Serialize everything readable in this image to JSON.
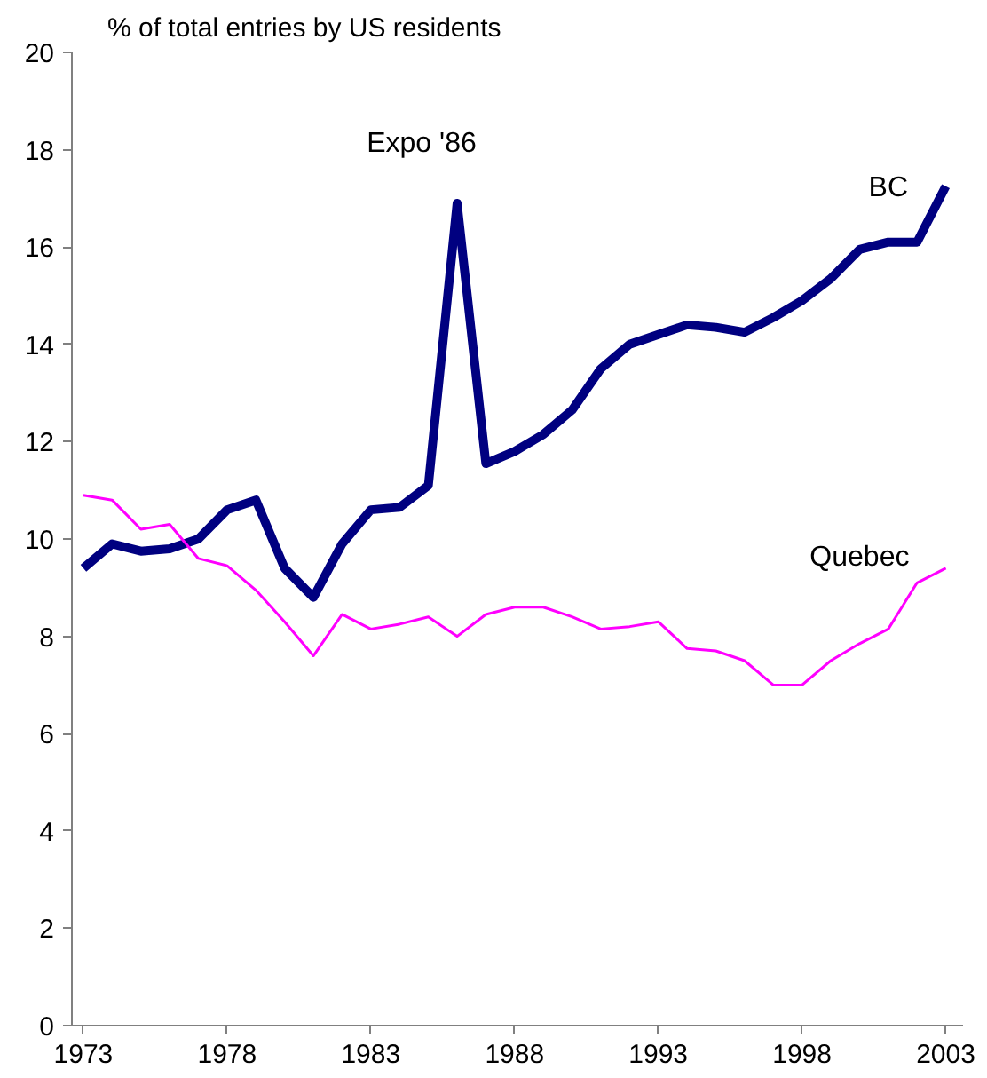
{
  "chart_data": {
    "type": "line",
    "title": "% of total entries by US residents",
    "x": [
      1973,
      1974,
      1975,
      1976,
      1977,
      1978,
      1979,
      1980,
      1981,
      1982,
      1983,
      1984,
      1985,
      1986,
      1987,
      1988,
      1989,
      1990,
      1991,
      1992,
      1993,
      1994,
      1995,
      1996,
      1997,
      1998,
      1999,
      2000,
      2001,
      2002,
      2003
    ],
    "series": [
      {
        "name": "BC",
        "color": "#000080",
        "values": [
          9.4,
          9.9,
          9.75,
          9.8,
          10.0,
          10.6,
          10.8,
          9.4,
          8.8,
          9.9,
          10.6,
          10.65,
          11.1,
          16.9,
          11.55,
          11.8,
          12.15,
          12.65,
          13.5,
          14.0,
          14.2,
          14.4,
          14.35,
          14.25,
          14.55,
          14.9,
          15.35,
          15.95,
          16.1,
          16.1,
          17.25
        ]
      },
      {
        "name": "Quebec",
        "color": "#ff00ff",
        "values": [
          10.9,
          10.8,
          10.2,
          10.3,
          9.6,
          9.45,
          8.95,
          8.3,
          7.6,
          8.45,
          8.15,
          8.25,
          8.4,
          8.0,
          8.45,
          8.6,
          8.6,
          8.4,
          8.15,
          8.2,
          8.3,
          7.75,
          7.7,
          7.5,
          7.0,
          7.0,
          7.5,
          7.85,
          8.15,
          9.1,
          9.4
        ]
      }
    ],
    "annotations": [
      {
        "text": "Expo '86",
        "x": 1986,
        "y": 16.9
      }
    ],
    "xlim": [
      1972.6,
      2003.6
    ],
    "xticks": [
      1973,
      1978,
      1983,
      1988,
      1993,
      1998,
      2003
    ],
    "ylim": [
      0,
      20
    ],
    "yticks": [
      0,
      2,
      4,
      6,
      8,
      10,
      12,
      14,
      16,
      18,
      20
    ],
    "grid": false,
    "marker": "none",
    "line_style": "solid"
  }
}
